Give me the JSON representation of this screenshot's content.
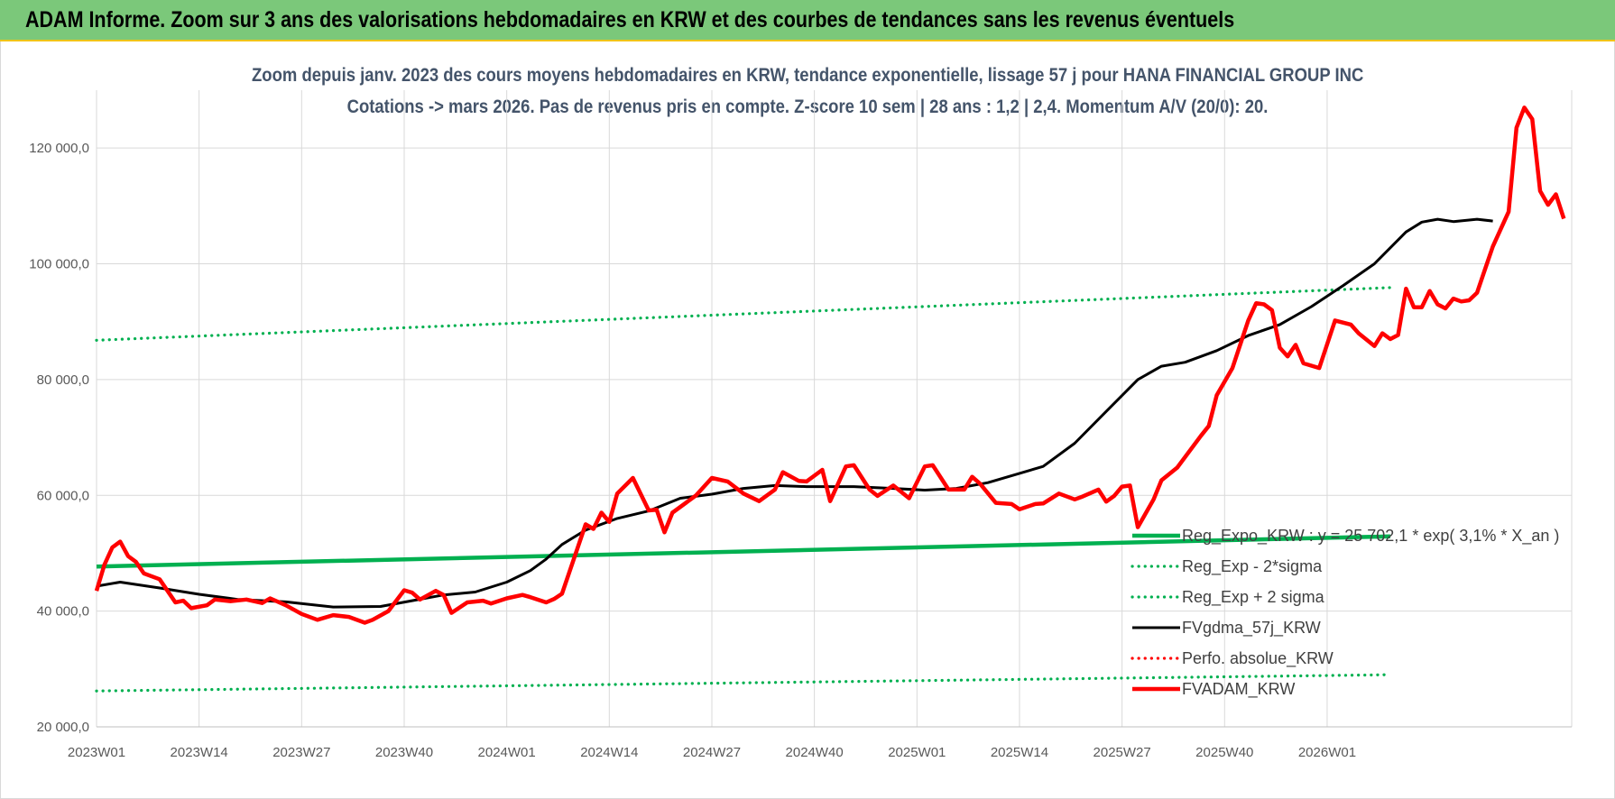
{
  "header": {
    "title": "ADAM Informe. Zoom sur 3 ans des valorisations hebdomadaires en KRW et des courbes de tendances sans les revenus éventuels"
  },
  "chart_data": {
    "type": "line",
    "title": "Zoom depuis janv. 2023 des cours moyens hebdomadaires en KRW, tendance exponentielle, lissage 57 j pour HANA FINANCIAL GROUP INC",
    "subtitle": "Cotations -> mars 2026. Pas de revenus pris en compte. Z-score 10 sem | 28 ans : 1,2 | 2,4. Momentum A/V (20/0): 20.",
    "xlabel": "",
    "ylabel": "",
    "ylim": [
      20000,
      130000
    ],
    "yticks": [
      "20 000,0",
      "40 000,0",
      "60 000,0",
      "80 000,0",
      "100 000,0",
      "120 000,0"
    ],
    "xticks": [
      "2023W01",
      "2023W14",
      "2023W27",
      "2023W40",
      "2024W01",
      "2024W14",
      "2024W27",
      "2024W40",
      "2025W01",
      "2025W14",
      "2025W27",
      "2025W40",
      "2026W01"
    ],
    "grid": true,
    "legend_position": "right",
    "series": [
      {
        "name": "Reg_Expo_KRW : y = 25 702,1 * exp( 3,1% * X_an )",
        "color": "#00b050",
        "style": "solid-thick",
        "points": [
          [
            0,
            47700
          ],
          [
            164,
            52900
          ]
        ]
      },
      {
        "name": "Reg_Exp - 2*sigma",
        "color": "#00b050",
        "style": "dotted",
        "points": [
          [
            0,
            26200
          ],
          [
            164,
            29000
          ]
        ]
      },
      {
        "name": "Reg_Exp + 2 sigma",
        "color": "#00b050",
        "style": "dotted",
        "points": [
          [
            0,
            86800
          ],
          [
            164,
            95900
          ]
        ]
      },
      {
        "name": "FVgdma_57j_KRW",
        "color": "#000000",
        "style": "solid",
        "points": [
          [
            0,
            44300
          ],
          [
            3,
            45000
          ],
          [
            8,
            44000
          ],
          [
            13,
            42900
          ],
          [
            18,
            42000
          ],
          [
            24,
            41600
          ],
          [
            30,
            40700
          ],
          [
            36,
            40800
          ],
          [
            40,
            41800
          ],
          [
            44,
            42800
          ],
          [
            48,
            43300
          ],
          [
            52,
            45000
          ],
          [
            55,
            47000
          ],
          [
            57,
            49000
          ],
          [
            59,
            51500
          ],
          [
            62,
            54000
          ],
          [
            66,
            56000
          ],
          [
            70,
            57300
          ],
          [
            74,
            59500
          ],
          [
            78,
            60200
          ],
          [
            82,
            61200
          ],
          [
            86,
            61700
          ],
          [
            90,
            61500
          ],
          [
            96,
            61500
          ],
          [
            101,
            61200
          ],
          [
            105,
            60900
          ],
          [
            109,
            61200
          ],
          [
            113,
            62200
          ],
          [
            117,
            63800
          ],
          [
            120,
            65000
          ],
          [
            124,
            69000
          ],
          [
            128,
            74500
          ],
          [
            132,
            80000
          ],
          [
            135,
            82300
          ],
          [
            138,
            83000
          ],
          [
            142,
            85000
          ],
          [
            146,
            87600
          ],
          [
            150,
            89500
          ],
          [
            154,
            92600
          ],
          [
            158,
            96200
          ],
          [
            162,
            100000
          ],
          [
            166,
            105500
          ],
          [
            168,
            107200
          ],
          [
            170,
            107700
          ],
          [
            172,
            107300
          ],
          [
            175,
            107700
          ],
          [
            177,
            107400
          ]
        ]
      },
      {
        "name": "Perfo. absolue_KRW",
        "color": "#ff0000",
        "style": "dotted",
        "points": []
      },
      {
        "name": "FVADAM_KRW",
        "color": "#ff0000",
        "style": "solid-thick",
        "points": [
          [
            0,
            43500
          ],
          [
            1,
            48000
          ],
          [
            2,
            51000
          ],
          [
            3,
            52000
          ],
          [
            4,
            49500
          ],
          [
            5,
            48500
          ],
          [
            6,
            46500
          ],
          [
            8,
            45500
          ],
          [
            10,
            41500
          ],
          [
            11,
            41800
          ],
          [
            12,
            40500
          ],
          [
            14,
            41000
          ],
          [
            15,
            42000
          ],
          [
            17,
            41700
          ],
          [
            19,
            42000
          ],
          [
            21,
            41400
          ],
          [
            22,
            42200
          ],
          [
            24,
            41000
          ],
          [
            26,
            39500
          ],
          [
            28,
            38500
          ],
          [
            30,
            39300
          ],
          [
            32,
            39000
          ],
          [
            34,
            38000
          ],
          [
            35,
            38500
          ],
          [
            37,
            40000
          ],
          [
            39,
            43600
          ],
          [
            40,
            43200
          ],
          [
            41,
            42000
          ],
          [
            43,
            43500
          ],
          [
            44,
            42800
          ],
          [
            45,
            39700
          ],
          [
            47,
            41500
          ],
          [
            49,
            41800
          ],
          [
            50,
            41300
          ],
          [
            52,
            42200
          ],
          [
            54,
            42800
          ],
          [
            55,
            42400
          ],
          [
            57,
            41500
          ],
          [
            58,
            42100
          ],
          [
            59,
            43000
          ],
          [
            62,
            55000
          ],
          [
            63,
            54200
          ],
          [
            64,
            57000
          ],
          [
            65,
            55400
          ],
          [
            66,
            60300
          ],
          [
            68,
            63000
          ],
          [
            70,
            57400
          ],
          [
            71,
            57500
          ],
          [
            72,
            53600
          ],
          [
            73,
            57000
          ],
          [
            76,
            60000
          ],
          [
            78,
            63000
          ],
          [
            80,
            62400
          ],
          [
            82,
            60300
          ],
          [
            84,
            59000
          ],
          [
            86,
            61000
          ],
          [
            87,
            64000
          ],
          [
            89,
            62500
          ],
          [
            90,
            62400
          ],
          [
            92,
            64400
          ],
          [
            93,
            59000
          ],
          [
            95,
            65000
          ],
          [
            96,
            65200
          ],
          [
            98,
            61000
          ],
          [
            99,
            59900
          ],
          [
            101,
            61700
          ],
          [
            103,
            59500
          ],
          [
            105,
            65000
          ],
          [
            106,
            65200
          ],
          [
            108,
            61000
          ],
          [
            110,
            61000
          ],
          [
            111,
            63200
          ],
          [
            112,
            62000
          ],
          [
            114,
            58700
          ],
          [
            116,
            58500
          ],
          [
            117,
            57600
          ],
          [
            119,
            58500
          ],
          [
            120,
            58600
          ],
          [
            122,
            60300
          ],
          [
            124,
            59300
          ],
          [
            125,
            59800
          ],
          [
            127,
            61000
          ],
          [
            128,
            58900
          ],
          [
            129,
            59900
          ],
          [
            130,
            61500
          ],
          [
            131,
            61700
          ],
          [
            132,
            54500
          ],
          [
            134,
            59300
          ],
          [
            135,
            62600
          ],
          [
            137,
            64800
          ],
          [
            140,
            70300
          ],
          [
            141,
            72000
          ],
          [
            142,
            77300
          ],
          [
            144,
            82000
          ],
          [
            146,
            90200
          ],
          [
            147,
            93200
          ],
          [
            148,
            93000
          ],
          [
            149,
            92000
          ],
          [
            150,
            85500
          ],
          [
            151,
            84000
          ],
          [
            152,
            86000
          ],
          [
            153,
            82800
          ],
          [
            155,
            82000
          ],
          [
            157,
            90200
          ],
          [
            159,
            89500
          ],
          [
            160,
            88000
          ],
          [
            162,
            85800
          ],
          [
            163,
            88000
          ],
          [
            164,
            87000
          ],
          [
            165,
            87700
          ],
          [
            166,
            95700
          ],
          [
            167,
            92500
          ],
          [
            168,
            92500
          ],
          [
            169,
            95300
          ],
          [
            170,
            93000
          ],
          [
            171,
            92300
          ],
          [
            172,
            94000
          ],
          [
            173,
            93500
          ],
          [
            174,
            93700
          ],
          [
            175,
            95000
          ],
          [
            176,
            99000
          ],
          [
            177,
            103000
          ],
          [
            179,
            109000
          ],
          [
            180,
            123500
          ],
          [
            181,
            127000
          ],
          [
            182,
            125000
          ],
          [
            183,
            112600
          ],
          [
            184,
            110200
          ],
          [
            185,
            112000
          ],
          [
            186,
            107800
          ]
        ]
      }
    ]
  }
}
